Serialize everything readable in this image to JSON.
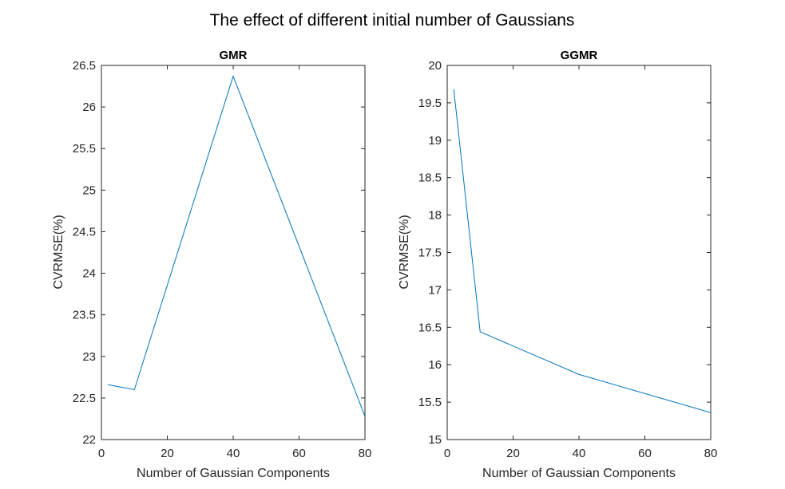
{
  "figure": {
    "title": "The effect of different initial number of  Gaussians"
  },
  "chart_data": [
    {
      "type": "line",
      "title": "GMR",
      "xlabel": "Number of Gaussian Components",
      "ylabel": "CVRMSE(%)",
      "xlim": [
        0,
        80
      ],
      "ylim": [
        22,
        26.5
      ],
      "xticks": [
        0,
        20,
        40,
        60,
        80
      ],
      "yticks": [
        22,
        22.5,
        23,
        23.5,
        24,
        24.5,
        25,
        25.5,
        26,
        26.5
      ],
      "xtick_labels": [
        "0",
        "20",
        "40",
        "60",
        "80"
      ],
      "ytick_labels": [
        "22",
        "22.5",
        "23",
        "23.5",
        "24",
        "24.5",
        "25",
        "25.5",
        "26",
        "26.5"
      ],
      "grid": false,
      "series": [
        {
          "x": [
            2,
            10,
            40,
            80
          ],
          "y": [
            22.66,
            22.6,
            26.37,
            22.28
          ],
          "color": "#0072bd"
        }
      ]
    },
    {
      "type": "line",
      "title": "GGMR",
      "xlabel": "Number of Gaussian Components",
      "ylabel": "CVRMSE(%)",
      "xlim": [
        0,
        80
      ],
      "ylim": [
        15,
        20
      ],
      "xticks": [
        0,
        20,
        40,
        60,
        80
      ],
      "yticks": [
        15,
        15.5,
        16,
        16.5,
        17,
        17.5,
        18,
        18.5,
        19,
        19.5,
        20
      ],
      "xtick_labels": [
        "0",
        "20",
        "40",
        "60",
        "80"
      ],
      "ytick_labels": [
        "15",
        "15.5",
        "16",
        "16.5",
        "17",
        "17.5",
        "18",
        "18.5",
        "19",
        "19.5",
        "20"
      ],
      "grid": false,
      "series": [
        {
          "x": [
            2,
            10,
            40,
            80
          ],
          "y": [
            19.68,
            16.44,
            15.87,
            15.36
          ],
          "color": "#0072bd"
        }
      ]
    }
  ]
}
